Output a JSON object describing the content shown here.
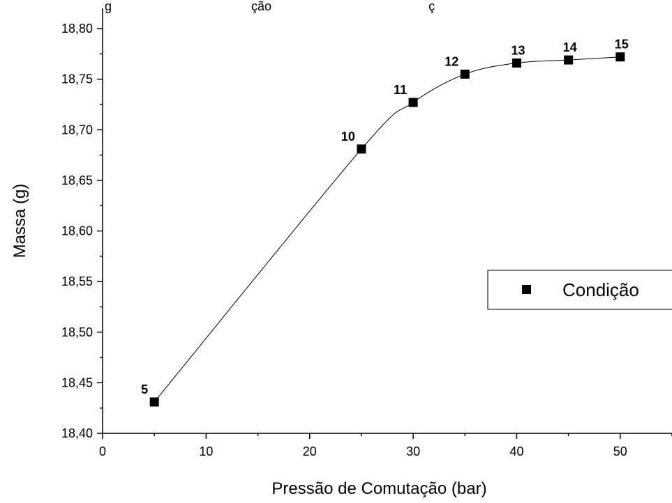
{
  "header": {
    "partial_title": "g                                        ção                                             ç"
  },
  "chart_data": {
    "type": "scatter",
    "title": "",
    "xlabel": "Pressão de Comutação (bar)",
    "ylabel": "Massa (g)",
    "xlim": [
      0,
      55
    ],
    "ylim": [
      18.4,
      18.82
    ],
    "x_ticks": [
      0,
      10,
      20,
      30,
      40,
      50
    ],
    "x_tick_labels": [
      "0",
      "10",
      "20",
      "30",
      "40",
      "50"
    ],
    "y_ticks": [
      18.4,
      18.45,
      18.5,
      18.55,
      18.6,
      18.65,
      18.7,
      18.75,
      18.8
    ],
    "y_tick_labels": [
      "18,40",
      "18,45",
      "18,50",
      "18,55",
      "18,60",
      "18,65",
      "18,70",
      "18,75",
      "18,80"
    ],
    "grid": false,
    "legend_position": "right",
    "series": [
      {
        "name": "Condição",
        "marker": "square",
        "color": "#000000",
        "line": "smooth",
        "points": [
          {
            "x": 5,
            "y": 18.431,
            "label": "5"
          },
          {
            "x": 25,
            "y": 18.681,
            "label": "10"
          },
          {
            "x": 30,
            "y": 18.727,
            "label": "11"
          },
          {
            "x": 35,
            "y": 18.755,
            "label": "12"
          },
          {
            "x": 40,
            "y": 18.766,
            "label": "13"
          },
          {
            "x": 45,
            "y": 18.769,
            "label": "14"
          },
          {
            "x": 50,
            "y": 18.772,
            "label": "15"
          }
        ]
      }
    ]
  }
}
